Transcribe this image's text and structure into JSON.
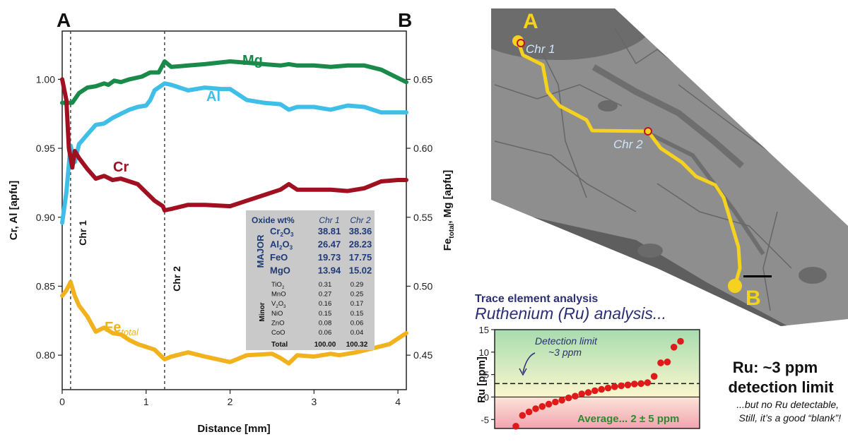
{
  "panel_a_letter": "A",
  "panel_b_letter": "B",
  "chart_data": [
    {
      "type": "line",
      "title": "",
      "xlabel": "Distance [mm]",
      "ylabel_left": "Cr, Al [apfu]",
      "ylabel_right_parts": [
        "Fe",
        "total",
        ", Mg [apfu]"
      ],
      "xlim": [
        0,
        4.1
      ],
      "ylim_left": [
        0.775,
        1.035
      ],
      "ylim_right": [
        0.425,
        0.685
      ],
      "x_ticks": [
        0,
        1,
        2,
        3,
        4
      ],
      "y_ticks_left": [
        "0.80",
        "0.85",
        "0.90",
        "0.95",
        "1.00"
      ],
      "y_ticks_left_values": [
        0.8,
        0.85,
        0.9,
        0.95,
        1.0
      ],
      "y_ticks_right": [
        "0.45",
        "0.50",
        "0.55",
        "0.60",
        "0.65"
      ],
      "y_ticks_right_values": [
        0.45,
        0.5,
        0.55,
        0.6,
        0.65
      ],
      "vlines": [
        {
          "x": 0.1,
          "label": "Chr 1"
        },
        {
          "x": 1.22,
          "label": "Chr 2"
        }
      ],
      "series": [
        {
          "name": "Mg",
          "color": "#1a8a4a",
          "axis": "right",
          "x": [
            0,
            0.12,
            0.2,
            0.3,
            0.4,
            0.5,
            0.55,
            0.62,
            0.7,
            0.8,
            0.95,
            1.05,
            1.15,
            1.22,
            1.3,
            1.5,
            1.7,
            2.0,
            2.2,
            2.4,
            2.6,
            2.7,
            2.8,
            3.0,
            3.2,
            3.4,
            3.6,
            3.8,
            4.0,
            4.1
          ],
          "y": [
            0.633,
            0.633,
            0.64,
            0.644,
            0.645,
            0.647,
            0.646,
            0.649,
            0.648,
            0.65,
            0.652,
            0.655,
            0.655,
            0.663,
            0.659,
            0.66,
            0.661,
            0.663,
            0.662,
            0.661,
            0.66,
            0.661,
            0.66,
            0.66,
            0.659,
            0.66,
            0.66,
            0.657,
            0.651,
            0.648
          ]
        },
        {
          "name": "Al",
          "color": "#3fbfe8",
          "axis": "left",
          "x": [
            0,
            0.05,
            0.1,
            0.15,
            0.2,
            0.3,
            0.4,
            0.5,
            0.6,
            0.7,
            0.8,
            0.9,
            1.0,
            1.05,
            1.1,
            1.22,
            1.3,
            1.5,
            1.7,
            1.9,
            2.0,
            2.2,
            2.4,
            2.6,
            2.7,
            2.8,
            3.0,
            3.2,
            3.4,
            3.6,
            3.8,
            4.0,
            4.1
          ],
          "y": [
            0.896,
            0.918,
            0.952,
            0.94,
            0.953,
            0.96,
            0.967,
            0.968,
            0.972,
            0.975,
            0.978,
            0.98,
            0.981,
            0.985,
            0.992,
            0.997,
            0.996,
            0.992,
            0.994,
            0.993,
            0.993,
            0.985,
            0.983,
            0.982,
            0.978,
            0.98,
            0.98,
            0.978,
            0.981,
            0.98,
            0.976,
            0.976,
            0.976
          ]
        },
        {
          "name": "Cr",
          "color": "#a01020",
          "axis": "left",
          "x": [
            0,
            0.05,
            0.08,
            0.12,
            0.15,
            0.2,
            0.3,
            0.4,
            0.5,
            0.6,
            0.7,
            0.8,
            0.9,
            1.0,
            1.1,
            1.2,
            1.22,
            1.3,
            1.5,
            1.7,
            2.0,
            2.2,
            2.4,
            2.6,
            2.7,
            2.8,
            3.0,
            3.2,
            3.4,
            3.6,
            3.8,
            4.0,
            4.1
          ],
          "y": [
            1.0,
            0.985,
            0.95,
            0.936,
            0.948,
            0.943,
            0.935,
            0.928,
            0.93,
            0.927,
            0.928,
            0.926,
            0.924,
            0.918,
            0.912,
            0.908,
            0.905,
            0.906,
            0.909,
            0.909,
            0.908,
            0.912,
            0.916,
            0.92,
            0.924,
            0.92,
            0.92,
            0.92,
            0.919,
            0.921,
            0.926,
            0.927,
            0.927
          ]
        },
        {
          "name": "Fe",
          "name_sub": "total",
          "color": "#f2b21d",
          "axis": "right",
          "x": [
            0,
            0.05,
            0.1,
            0.15,
            0.2,
            0.3,
            0.4,
            0.5,
            0.6,
            0.7,
            0.8,
            0.9,
            1.0,
            1.1,
            1.22,
            1.3,
            1.5,
            1.7,
            2.0,
            2.2,
            2.5,
            2.6,
            2.7,
            2.8,
            3.0,
            3.2,
            3.3,
            3.5,
            3.7,
            3.9,
            4.1
          ],
          "y": [
            0.493,
            0.497,
            0.503,
            0.493,
            0.486,
            0.478,
            0.467,
            0.47,
            0.466,
            0.465,
            0.461,
            0.458,
            0.456,
            0.454,
            0.447,
            0.449,
            0.452,
            0.449,
            0.445,
            0.45,
            0.451,
            0.448,
            0.444,
            0.45,
            0.449,
            0.451,
            0.45,
            0.452,
            0.455,
            0.458,
            0.466
          ]
        }
      ]
    },
    {
      "type": "scatter",
      "title": "Ruthenium (Ru) analysis...",
      "ylabel": "Ru [ppm]",
      "ylim": [
        -7,
        15
      ],
      "y_ticks": [
        -5,
        0,
        5,
        10,
        15
      ],
      "detection_limit": 3,
      "average_text": "Average... 2 ± 5 ppm",
      "detection_text_1": "Detection limit",
      "detection_text_2": "~3 ppm",
      "y": [
        -6.5,
        -4.1,
        -3.3,
        -2.6,
        -2.1,
        -1.6,
        -1.1,
        -0.7,
        -0.2,
        0.2,
        0.7,
        1.0,
        1.4,
        1.7,
        2.0,
        2.3,
        2.5,
        2.7,
        2.9,
        3.0,
        3.2,
        4.6,
        7.6,
        7.8,
        11.1,
        12.4
      ]
    }
  ],
  "table": {
    "header": [
      "Oxide wt%",
      "Chr 1",
      "Chr 2"
    ],
    "major_label": "MAJOR",
    "minor_label": "Minor",
    "major": [
      {
        "oxide": [
          "Cr",
          "2",
          "O",
          "3"
        ],
        "v1": "38.81",
        "v2": "38.36"
      },
      {
        "oxide": [
          "Al",
          "2",
          "O",
          "3"
        ],
        "v1": "26.47",
        "v2": "28.23"
      },
      {
        "oxide": [
          "FeO"
        ],
        "v1": "19.73",
        "v2": "17.75"
      },
      {
        "oxide": [
          "MgO"
        ],
        "v1": "13.94",
        "v2": "15.02"
      }
    ],
    "minor": [
      {
        "oxide": [
          "TiO",
          "2"
        ],
        "v1": "0.31",
        "v2": "0.29"
      },
      {
        "oxide": [
          "MnO"
        ],
        "v1": "0.27",
        "v2": "0.25"
      },
      {
        "oxide": [
          "V",
          "2",
          "O",
          "3"
        ],
        "v1": "0.16",
        "v2": "0.17"
      },
      {
        "oxide": [
          "NiO"
        ],
        "v1": "0.15",
        "v2": "0.15"
      },
      {
        "oxide": [
          "ZnO"
        ],
        "v1": "0.08",
        "v2": "0.06"
      },
      {
        "oxide": [
          "CoO"
        ],
        "v1": "0.06",
        "v2": "0.04"
      }
    ],
    "total": {
      "label": "Total",
      "v1": "100.00",
      "v2": "100.32"
    }
  },
  "bse": {
    "start_letter": "A",
    "end_letter": "B",
    "point1_label": "Chr 1",
    "point2_label": "Chr 2",
    "path_color": "#f4d21f"
  },
  "trace": {
    "title": "Trace element analysis",
    "subtitle": "Ruthenium (Ru) analysis..."
  },
  "conclusion": {
    "line1": "Ru: ~3 ppm",
    "line2": "detection limit",
    "line3": "...but no Ru detectable,",
    "line4": "Still, it’s a good “blank”!"
  }
}
